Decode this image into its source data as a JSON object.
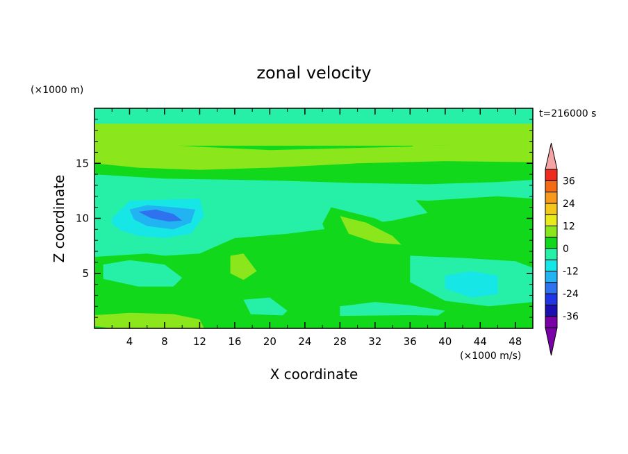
{
  "chart_data": {
    "type": "heatmap",
    "title": "zonal velocity",
    "xlabel": "X coordinate",
    "ylabel": "Z coordinate",
    "x_unit": "(×1000 m/s)",
    "y_unit": "(×1000 m)",
    "time_label": "t=216000 s",
    "xlim": [
      0,
      50
    ],
    "ylim": [
      0,
      20
    ],
    "x_ticks": [
      "4",
      "8",
      "12",
      "16",
      "20",
      "24",
      "28",
      "32",
      "36",
      "40",
      "44",
      "48"
    ],
    "y_ticks": [
      "5",
      "10",
      "15"
    ],
    "colorbar": {
      "levels": [
        -42,
        -36,
        -30,
        -24,
        -18,
        -12,
        -6,
        0,
        6,
        12,
        18,
        24,
        30,
        36,
        42
      ],
      "tick_labels": [
        "36",
        "24",
        "12",
        "0",
        "-12",
        "-24",
        "-36"
      ],
      "colors": [
        "#7a00a8",
        "#1a0fb0",
        "#1f35e6",
        "#2f72f0",
        "#22b4f2",
        "#17e6e6",
        "#26f0a8",
        "#12d81c",
        "#8ce61c",
        "#e8ea1c",
        "#f4c81a",
        "#f7991a",
        "#f56a14",
        "#ef2a1e",
        "#f4a4a4"
      ],
      "under_color": "#7a00a8",
      "over_color": "#f4a4a4",
      "extend": "both"
    },
    "contour_regions": [
      {
        "x": [
          0,
          50,
          50,
          0
        ],
        "z": [
          0,
          0,
          20,
          20
        ],
        "value": 0
      },
      {
        "x": [
          0,
          50,
          50,
          0
        ],
        "z": [
          14.5,
          14.5,
          20,
          20
        ],
        "value": 3
      },
      {
        "x": [
          0,
          50,
          50,
          0
        ],
        "z": [
          16.6,
          16.6,
          19.8,
          19.8
        ],
        "value": 6
      },
      {
        "x": [
          0,
          50,
          50,
          0
        ],
        "z": [
          18.6,
          18.6,
          20,
          20
        ],
        "value": -3
      },
      {
        "x": [
          3,
          10,
          14,
          8,
          2
        ],
        "z": [
          19.8,
          19.5,
          20,
          20,
          20
        ],
        "value": -6
      },
      {
        "x": [
          20,
          30,
          28,
          18
        ],
        "z": [
          19.7,
          19.6,
          20,
          20
        ],
        "value": -6
      },
      {
        "x": [
          0,
          5,
          12,
          20,
          30,
          40,
          50,
          50,
          40,
          30,
          20,
          12,
          5,
          0
        ],
        "z": [
          17.2,
          16.8,
          16.5,
          16.2,
          16.4,
          16.6,
          16.9,
          15.1,
          15.2,
          15,
          14.6,
          14.4,
          14.6,
          15
        ],
        "value": 6
      },
      {
        "x": [
          36,
          42,
          48,
          50,
          50,
          44,
          38
        ],
        "z": [
          16.7,
          16.5,
          16.6,
          16.7,
          15.5,
          15.3,
          15.8
        ],
        "value": 9
      },
      {
        "x": [
          0,
          8,
          16,
          22,
          30,
          38,
          46,
          50,
          50,
          46,
          38,
          30,
          22,
          16,
          8,
          0
        ],
        "z": [
          14,
          13.6,
          13.5,
          13.4,
          13.2,
          13.1,
          13.3,
          13.5,
          11.8,
          12,
          11.6,
          11.9,
          11.5,
          11.3,
          11.8,
          12.2
        ],
        "value": -3
      },
      {
        "x": [
          0,
          4,
          10,
          14,
          18,
          24,
          30,
          36,
          38,
          34,
          28,
          22,
          16,
          12,
          6,
          0
        ],
        "z": [
          12.5,
          12.2,
          12.3,
          12,
          12.4,
          12.6,
          12.8,
          12.2,
          10.5,
          9.8,
          9.2,
          8.6,
          8.2,
          6.8,
          6.5,
          6.2
        ],
        "value": -6
      },
      {
        "x": [
          2,
          4,
          8,
          12,
          12.5,
          11,
          8,
          5,
          3,
          2
        ],
        "z": [
          10,
          11.6,
          11.7,
          11.8,
          10.2,
          8.6,
          8.2,
          8.4,
          8.9,
          9.5
        ],
        "value": -12
      },
      {
        "x": [
          4,
          6,
          9,
          11.5,
          11,
          9,
          6,
          4.5
        ],
        "z": [
          10.8,
          11.2,
          11,
          10.8,
          9.6,
          9,
          9.3,
          9.9
        ],
        "value": -18
      },
      {
        "x": [
          5,
          7,
          9,
          10,
          8.5,
          6.5
        ],
        "z": [
          10.6,
          10.8,
          10.4,
          9.8,
          9.7,
          10
        ],
        "value": -24
      },
      {
        "x": [
          27,
          32,
          36,
          36,
          33,
          30,
          27,
          26
        ],
        "z": [
          11,
          10,
          8.5,
          6.8,
          7.5,
          6.5,
          7.5,
          9.5
        ],
        "value": 3
      },
      {
        "x": [
          28,
          31,
          34,
          35,
          32,
          29
        ],
        "z": [
          10.2,
          9.6,
          8.4,
          7.6,
          7.8,
          8.6
        ],
        "value": 6
      },
      {
        "x": [
          14,
          16,
          20,
          20.5,
          18,
          15,
          14
        ],
        "z": [
          6.5,
          7.6,
          7,
          4.2,
          3.2,
          4.5,
          5.5
        ],
        "value": 3
      },
      {
        "x": [
          15.5,
          17,
          18.5,
          17,
          15.5
        ],
        "z": [
          6.6,
          6.8,
          5.2,
          4.4,
          5
        ],
        "value": 6
      },
      {
        "x": [
          22,
          25,
          27,
          25,
          23
        ],
        "z": [
          5.5,
          5.2,
          3.8,
          3.3,
          4.2
        ],
        "value": 3
      },
      {
        "x": [
          0,
          6,
          12,
          14,
          12,
          6,
          0
        ],
        "z": [
          6.5,
          6.8,
          6.2,
          4.5,
          3,
          2.8,
          3
        ],
        "value": 0
      },
      {
        "x": [
          1,
          4,
          8,
          10,
          9,
          5,
          1
        ],
        "z": [
          5.8,
          6.2,
          5.8,
          4.6,
          3.8,
          3.8,
          4.5
        ],
        "value": -3
      },
      {
        "x": [
          36,
          42,
          48,
          50,
          50,
          45,
          40,
          36
        ],
        "z": [
          6.6,
          6.4,
          6.1,
          5.5,
          2.4,
          2,
          2.5,
          4.2
        ],
        "value": -6
      },
      {
        "x": [
          40,
          43,
          46,
          46,
          43,
          40
        ],
        "z": [
          4.8,
          5.2,
          4.8,
          3.1,
          2.8,
          3.6
        ],
        "value": -12
      },
      {
        "x": [
          17,
          20,
          22,
          21,
          18
        ],
        "z": [
          2.6,
          2.8,
          1.6,
          0.8,
          1
        ],
        "value": -6
      },
      {
        "x": [
          28,
          32,
          36,
          40,
          38,
          33,
          28
        ],
        "z": [
          2,
          2.4,
          2.1,
          1.6,
          0.5,
          0.4,
          0.8
        ],
        "value": -6
      },
      {
        "x": [
          0,
          6,
          12,
          14,
          12,
          6,
          0
        ],
        "z": [
          2.5,
          2.6,
          2.3,
          1.5,
          0.8,
          0.6,
          0.8
        ],
        "value": 3
      },
      {
        "x": [
          0,
          14,
          24,
          36,
          50,
          50,
          0
        ],
        "z": [
          1.3,
          1.4,
          1.1,
          1.2,
          1.0,
          0,
          0
        ],
        "value": 3
      },
      {
        "x": [
          0,
          4,
          9,
          12,
          12.5,
          8,
          2,
          0
        ],
        "z": [
          1.2,
          1.4,
          1.3,
          0.8,
          0,
          0,
          0,
          0.2
        ],
        "value": 6
      },
      {
        "x": [
          3,
          6,
          9,
          10.5,
          10,
          6,
          3
        ],
        "z": [
          0.8,
          1.0,
          0.9,
          0.5,
          0,
          0,
          0
        ],
        "value": 9
      }
    ]
  }
}
